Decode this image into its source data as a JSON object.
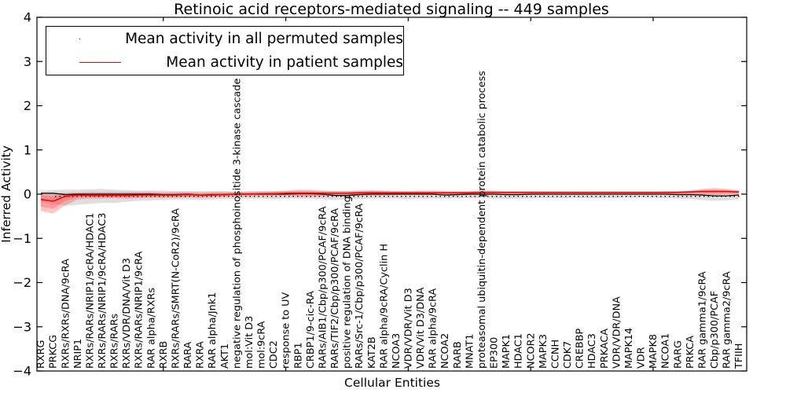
{
  "chart_data": {
    "type": "line",
    "title": "Retinoic acid receptors-mediated signaling -- 449 samples",
    "xlabel": "Cellular Entities",
    "ylabel": "Inferred Activity",
    "ylim": [
      -4,
      4
    ],
    "yticks": [
      4,
      3,
      2,
      1,
      0,
      -1,
      -2,
      -3,
      -4
    ],
    "ytick_labels": [
      "4",
      "3",
      "2",
      "1",
      "0",
      "−1",
      "−2",
      "−3",
      "−4"
    ],
    "xticks_at_category_indices": [
      10,
      20,
      30,
      40,
      50
    ],
    "grid": false,
    "legend_position": "upper left",
    "baseline_dotted_y": -0.05,
    "categories": [
      "RXRG",
      "PRKCG",
      "RXRs/RXRs/DNA/9cRA",
      "NRIP1",
      "RXRs/RARs/NRIP1/9cRA/HDAC1",
      "RXRs/RARs/NRIP1/9cRA/HDAC3",
      "RXRs/RARs",
      "RXRs/VDR/DNA/Vit D3",
      "RXRs/RARs/NRIP1/9cRA",
      "RAR alpha/RXRs",
      "RXRB",
      "RXRs/RARs/SMRT(N-CoR2)/9cRA",
      "RARA",
      "RXRA",
      "RAR alpha/Jnk1",
      "AKT1",
      "negative regulation of phosphoinositide 3-kinase cascade",
      "mol:Vit D3",
      "mol:9cRA",
      "CDC2",
      "response to UV",
      "RBP1",
      "CRBP1/9-cic-RA",
      "RARs/AIB1/Cbp/p300/PCAF/9cRA",
      "RARs/TIF2/Cbp/p300/PCAF/9cRA",
      "positive regulation of DNA binding",
      "RARs/Src-1/Cbp/p300/PCAF/9cRA",
      "KAT2B",
      "RAR alpha/9cRA/Cyclin H",
      "NCOA3",
      "VDR/VDR/Vit D3",
      "VDR/Vit D3/DNA",
      "RAR alpha/9cRA",
      "NCOA2",
      "RARB",
      "MNAT1",
      "proteasomal ubiquitin-dependent protein catabolic process",
      "EP300",
      "MAPK1",
      "HDAC1",
      "NCOR2",
      "MAPK3",
      "CCNH",
      "CDK7",
      "CREBBP",
      "HDAC3",
      "PRKACA",
      "VDR/VDR/DNA",
      "MAPK14",
      "VDR",
      "MAPK8",
      "NCOA1",
      "RARG",
      "PRKCA",
      "RAR gamma1/9cRA",
      "Cbp/p300/PCAF",
      "RAR gamma2/9cRA",
      "TFIIH"
    ],
    "series": [
      {
        "name": "Mean activity in all permuted samples",
        "color": "#000000",
        "values": [
          0.02,
          0.02,
          -0.01,
          0.0,
          0.0,
          0.0,
          0.0,
          0.0,
          0.0,
          0.0,
          -0.01,
          -0.01,
          0.0,
          -0.02,
          -0.02,
          -0.01,
          0.0,
          0.0,
          0.0,
          0.0,
          0.0,
          0.01,
          0.01,
          0.0,
          -0.03,
          -0.03,
          -0.01,
          0.0,
          0.0,
          0.0,
          0.0,
          0.0,
          0.0,
          -0.02,
          -0.01,
          0.0,
          0.0,
          0.0,
          -0.01,
          -0.01,
          0.0,
          0.0,
          0.0,
          0.0,
          0.0,
          0.0,
          0.0,
          0.0,
          0.0,
          0.0,
          0.0,
          0.0,
          -0.01,
          -0.01,
          -0.02,
          -0.04,
          -0.04,
          -0.02
        ],
        "band_upper": [
          0.08,
          0.09,
          0.1,
          0.1,
          0.11,
          0.12,
          0.1,
          0.09,
          0.08,
          0.08,
          0.08,
          0.07,
          0.07,
          0.07,
          0.07,
          0.07,
          0.06,
          0.06,
          0.07,
          0.07,
          0.07,
          0.07,
          0.07,
          0.07,
          0.07,
          0.07,
          0.07,
          0.07,
          0.07,
          0.06,
          0.06,
          0.06,
          0.06,
          0.06,
          0.06,
          0.06,
          0.06,
          0.06,
          0.06,
          0.06,
          0.06,
          0.06,
          0.06,
          0.06,
          0.05,
          0.05,
          0.05,
          0.05,
          0.05,
          0.05,
          0.05,
          0.06,
          0.06,
          0.07,
          0.08,
          0.09,
          0.08,
          0.07
        ],
        "band_lower": [
          -0.18,
          -0.22,
          -0.26,
          -0.24,
          -0.22,
          -0.2,
          -0.2,
          -0.17,
          -0.15,
          -0.14,
          -0.13,
          -0.12,
          -0.12,
          -0.13,
          -0.12,
          -0.11,
          -0.1,
          -0.1,
          -0.1,
          -0.11,
          -0.1,
          -0.1,
          -0.1,
          -0.11,
          -0.13,
          -0.12,
          -0.11,
          -0.1,
          -0.1,
          -0.1,
          -0.11,
          -0.1,
          -0.1,
          -0.1,
          -0.09,
          -0.09,
          -0.09,
          -0.1,
          -0.11,
          -0.1,
          -0.1,
          -0.09,
          -0.09,
          -0.09,
          -0.09,
          -0.09,
          -0.09,
          -0.09,
          -0.08,
          -0.08,
          -0.08,
          -0.09,
          -0.1,
          -0.11,
          -0.13,
          -0.15,
          -0.14,
          -0.12
        ],
        "band_color": "#999999",
        "band_opacity": 0.32
      },
      {
        "name": "Mean activity in patient samples",
        "color": "#ff0000",
        "values": [
          -0.12,
          -0.16,
          -0.05,
          -0.02,
          -0.03,
          -0.03,
          -0.03,
          -0.03,
          -0.02,
          -0.02,
          -0.02,
          -0.02,
          -0.01,
          -0.02,
          -0.01,
          -0.01,
          0.0,
          0.0,
          0.01,
          0.01,
          0.02,
          0.02,
          0.02,
          0.02,
          0.02,
          0.02,
          0.03,
          0.03,
          0.03,
          0.03,
          0.03,
          0.03,
          0.03,
          0.03,
          0.03,
          0.03,
          0.04,
          0.04,
          0.04,
          0.04,
          0.04,
          0.04,
          0.04,
          0.04,
          0.04,
          0.04,
          0.04,
          0.04,
          0.04,
          0.04,
          0.04,
          0.04,
          0.04,
          0.05,
          0.06,
          0.06,
          0.06,
          0.05
        ],
        "band_upper": [
          0.03,
          0.02,
          0.03,
          0.04,
          0.05,
          0.05,
          0.05,
          0.05,
          0.05,
          0.05,
          0.04,
          0.05,
          0.05,
          0.04,
          0.05,
          0.05,
          0.05,
          0.06,
          0.06,
          0.06,
          0.08,
          0.1,
          0.1,
          0.08,
          0.07,
          0.07,
          0.08,
          0.09,
          0.08,
          0.07,
          0.07,
          0.08,
          0.08,
          0.07,
          0.06,
          0.07,
          0.09,
          0.08,
          0.07,
          0.07,
          0.07,
          0.06,
          0.06,
          0.06,
          0.06,
          0.06,
          0.06,
          0.06,
          0.06,
          0.06,
          0.06,
          0.07,
          0.07,
          0.08,
          0.12,
          0.14,
          0.12,
          0.09
        ],
        "band_lower": [
          -0.38,
          -0.44,
          -0.25,
          -0.12,
          -0.1,
          -0.1,
          -0.09,
          -0.1,
          -0.09,
          -0.08,
          -0.08,
          -0.08,
          -0.07,
          -0.08,
          -0.07,
          -0.06,
          -0.05,
          -0.05,
          -0.04,
          -0.04,
          -0.04,
          -0.05,
          -0.06,
          -0.05,
          -0.04,
          -0.04,
          -0.03,
          -0.03,
          -0.03,
          -0.02,
          -0.02,
          -0.02,
          -0.02,
          -0.02,
          -0.02,
          -0.02,
          -0.02,
          -0.01,
          -0.01,
          -0.01,
          -0.01,
          -0.01,
          0.0,
          0.0,
          0.0,
          0.0,
          0.01,
          0.01,
          0.01,
          0.01,
          0.01,
          0.01,
          0.0,
          0.0,
          -0.01,
          -0.02,
          -0.01,
          0.0
        ],
        "inner_band_upper": [
          -0.02,
          -0.05,
          -0.01,
          0.01,
          0.01,
          0.01,
          0.01,
          0.01,
          0.01,
          0.02,
          0.01,
          0.01,
          0.02,
          0.01,
          0.02,
          0.02,
          0.03,
          0.03,
          0.03,
          0.04,
          0.05,
          0.06,
          0.06,
          0.05,
          0.04,
          0.04,
          0.05,
          0.06,
          0.05,
          0.05,
          0.05,
          0.05,
          0.05,
          0.05,
          0.05,
          0.05,
          0.06,
          0.06,
          0.05,
          0.05,
          0.05,
          0.05,
          0.05,
          0.05,
          0.05,
          0.05,
          0.05,
          0.05,
          0.05,
          0.05,
          0.05,
          0.05,
          0.06,
          0.06,
          0.09,
          0.1,
          0.09,
          0.07
        ],
        "inner_band_lower": [
          -0.28,
          -0.33,
          -0.15,
          -0.07,
          -0.06,
          -0.06,
          -0.06,
          -0.06,
          -0.06,
          -0.05,
          -0.05,
          -0.05,
          -0.04,
          -0.05,
          -0.04,
          -0.04,
          -0.03,
          -0.02,
          -0.02,
          -0.01,
          -0.01,
          -0.02,
          -0.02,
          -0.02,
          -0.01,
          -0.01,
          0.0,
          0.0,
          0.0,
          0.01,
          0.01,
          0.01,
          0.01,
          0.01,
          0.01,
          0.01,
          0.01,
          0.02,
          0.02,
          0.02,
          0.02,
          0.02,
          0.02,
          0.02,
          0.02,
          0.02,
          0.02,
          0.02,
          0.02,
          0.02,
          0.02,
          0.02,
          0.02,
          0.03,
          0.03,
          0.03,
          0.03,
          0.03
        ],
        "band_color": "#ff2a2a",
        "band_opacity": 0.27
      }
    ]
  }
}
